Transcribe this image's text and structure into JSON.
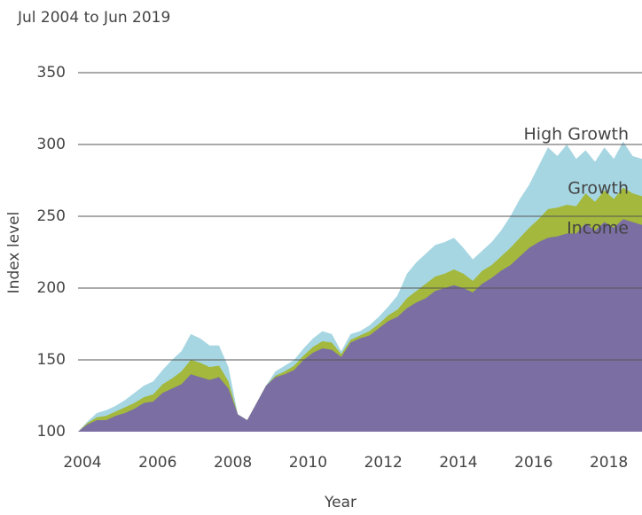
{
  "chart_data": {
    "type": "area",
    "subtitle": "Jul 2004 to Jun 2019",
    "y_label": "Index level",
    "x_label": "Year",
    "x": [
      2004,
      2004.25,
      2004.5,
      2004.75,
      2005,
      2005.25,
      2005.5,
      2005.75,
      2006,
      2006.25,
      2006.5,
      2006.75,
      2007,
      2007.25,
      2007.5,
      2007.75,
      2008,
      2008.25,
      2008.5,
      2008.75,
      2009,
      2009.25,
      2009.5,
      2009.75,
      2010,
      2010.25,
      2010.5,
      2010.75,
      2011,
      2011.25,
      2011.5,
      2011.75,
      2012,
      2012.25,
      2012.5,
      2012.75,
      2013,
      2013.25,
      2013.5,
      2013.75,
      2014,
      2014.25,
      2014.5,
      2014.75,
      2015,
      2015.25,
      2015.5,
      2015.75,
      2016,
      2016.25,
      2016.5,
      2016.75,
      2017,
      2017.25,
      2017.5,
      2017.75,
      2018,
      2018.25,
      2018.5,
      2018.75,
      2019
    ],
    "series": [
      {
        "name": "High Growth",
        "color": "#a6d6e2",
        "values": [
          100,
          107,
          113,
          115,
          118,
          122,
          127,
          132,
          135,
          143,
          150,
          156,
          168,
          165,
          160,
          160,
          145,
          112,
          108,
          120,
          132,
          142,
          146,
          150,
          158,
          165,
          170,
          168,
          156,
          168,
          170,
          174,
          180,
          187,
          195,
          210,
          218,
          224,
          230,
          232,
          235,
          228,
          220,
          226,
          232,
          240,
          250,
          262,
          272,
          285,
          298,
          292,
          300,
          290,
          296,
          288,
          298,
          290,
          302,
          292,
          290
        ]
      },
      {
        "name": "Growth",
        "color": "#a3b83c",
        "values": [
          100,
          106,
          110,
          111,
          114,
          117,
          120,
          124,
          126,
          133,
          137,
          142,
          150,
          148,
          145,
          146,
          135,
          112,
          108,
          120,
          132,
          139,
          142,
          146,
          153,
          159,
          163,
          162,
          154,
          164,
          167,
          170,
          175,
          181,
          185,
          193,
          198,
          203,
          208,
          210,
          213,
          210,
          205,
          212,
          216,
          222,
          228,
          235,
          242,
          248,
          255,
          256,
          258,
          257,
          266,
          260,
          268,
          262,
          270,
          266,
          264
        ]
      },
      {
        "name": "Income",
        "color": "#7b6ea3",
        "values": [
          100,
          105,
          108,
          108,
          111,
          113,
          116,
          120,
          121,
          127,
          130,
          133,
          140,
          138,
          136,
          138,
          130,
          112,
          108,
          120,
          132,
          138,
          140,
          143,
          150,
          155,
          158,
          157,
          152,
          162,
          165,
          167,
          172,
          177,
          180,
          186,
          190,
          193,
          198,
          200,
          202,
          200,
          197,
          203,
          207,
          212,
          216,
          222,
          228,
          232,
          235,
          236,
          238,
          238,
          245,
          240,
          246,
          242,
          248,
          246,
          244
        ]
      }
    ],
    "xlim": [
      2004,
      2019
    ],
    "xticks": [
      2004,
      2006,
      2008,
      2010,
      2012,
      2014,
      2016,
      2018
    ],
    "ylim": [
      100,
      350
    ],
    "yticks": [
      100,
      150,
      200,
      250,
      300,
      350
    ],
    "grid": true
  }
}
